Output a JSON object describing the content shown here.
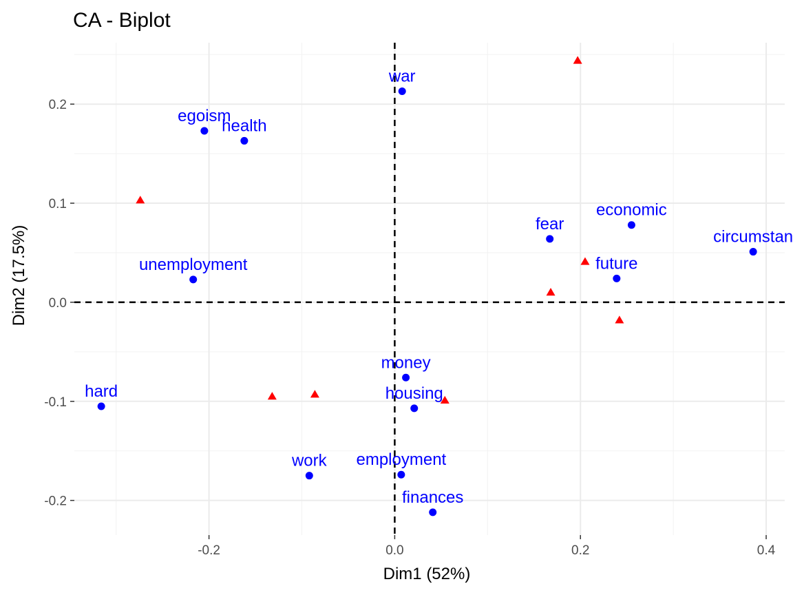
{
  "chart_data": {
    "type": "scatter",
    "title": "CA - Biplot",
    "xlabel": "Dim1 (52%)",
    "ylabel": "Dim2 (17.5%)",
    "xlim": [
      -0.345,
      0.42
    ],
    "ylim": [
      -0.235,
      0.262
    ],
    "x_ticks": [
      -0.2,
      0.0,
      0.2,
      0.4
    ],
    "x_tick_labels": [
      "-0.2",
      "0.0",
      "0.2",
      "0.4"
    ],
    "y_ticks": [
      -0.2,
      -0.1,
      0.0,
      0.1,
      0.2
    ],
    "y_tick_labels": [
      "-0.2",
      "-0.1",
      "0.0",
      "0.1",
      "0.2"
    ],
    "grid": true,
    "reference_lines": {
      "x": 0,
      "y": 0
    },
    "legend": "none",
    "colors": {
      "row_points": "#0000ff",
      "col_points": "#ff0000"
    },
    "series": [
      {
        "marker": "circle",
        "color": "#0000ff",
        "points": [
          {
            "label": "war",
            "x": 0.008,
            "y": 0.213
          },
          {
            "label": "egoism",
            "x": -0.205,
            "y": 0.173
          },
          {
            "label": "health",
            "x": -0.162,
            "y": 0.163
          },
          {
            "label": "fear",
            "x": 0.167,
            "y": 0.064
          },
          {
            "label": "economic",
            "x": 0.255,
            "y": 0.078
          },
          {
            "label": "circumstan",
            "x": 0.386,
            "y": 0.051
          },
          {
            "label": "future",
            "x": 0.239,
            "y": 0.024
          },
          {
            "label": "unemployment",
            "x": -0.217,
            "y": 0.023
          },
          {
            "label": "money",
            "x": 0.012,
            "y": -0.076
          },
          {
            "label": "housing",
            "x": 0.021,
            "y": -0.107
          },
          {
            "label": "hard",
            "x": -0.316,
            "y": -0.105
          },
          {
            "label": "work",
            "x": -0.092,
            "y": -0.175
          },
          {
            "label": "employment",
            "x": 0.007,
            "y": -0.174
          },
          {
            "label": "finances",
            "x": 0.041,
            "y": -0.212
          }
        ]
      },
      {
        "marker": "triangle",
        "color": "#ff0000",
        "points": [
          {
            "x": 0.197,
            "y": 0.244
          },
          {
            "x": -0.274,
            "y": 0.103
          },
          {
            "x": 0.205,
            "y": 0.041
          },
          {
            "x": 0.168,
            "y": 0.01
          },
          {
            "x": 0.242,
            "y": -0.018
          },
          {
            "x": -0.132,
            "y": -0.095
          },
          {
            "x": -0.086,
            "y": -0.093
          },
          {
            "x": 0.054,
            "y": -0.099
          }
        ]
      }
    ]
  }
}
